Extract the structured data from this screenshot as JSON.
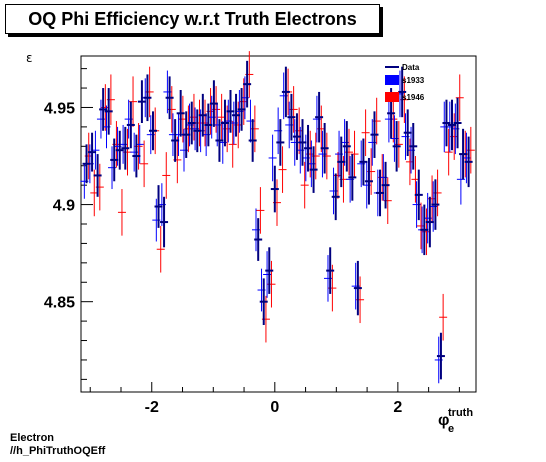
{
  "page": {
    "title": "OQ Phi Efficiency w.r.t Truth Electrons",
    "footer": [
      "Electron",
      "//h_PhiTruthOQEff"
    ]
  },
  "chart_data": {
    "type": "scatter",
    "title": "OQ Phi Efficiency w.r.t Truth Electrons",
    "ylabel": "ε",
    "xlabel_main": "φ",
    "xlabel_sub": "e",
    "xlabel_sup": "truth",
    "xlim": [
      -3.15,
      3.27
    ],
    "ylim": [
      4.8035,
      4.9765
    ],
    "xticks": [
      {
        "v": -2,
        "label": "-2"
      },
      {
        "v": 0,
        "label": "0"
      },
      {
        "v": 2,
        "label": "2"
      }
    ],
    "yticks": [
      {
        "v": 4.85,
        "label": "4.85"
      },
      {
        "v": 4.9,
        "label": "4.9"
      },
      {
        "v": 4.95,
        "label": "4.95"
      }
    ],
    "legend_position": "top-right",
    "series": [
      {
        "name": "Data",
        "color": "#00007f",
        "style": "errorbar",
        "points": [
          [
            -3.06,
            4.921,
            0.01
          ],
          [
            -2.97,
            4.927,
            0.01
          ],
          [
            -2.88,
            4.915,
            0.011
          ],
          [
            -2.79,
            4.949,
            0.011
          ],
          [
            -2.7,
            4.948,
            0.012
          ],
          [
            -2.61,
            4.923,
            0.011
          ],
          [
            -2.52,
            4.928,
            0.01
          ],
          [
            -2.43,
            4.929,
            0.011
          ],
          [
            -2.34,
            4.941,
            0.012
          ],
          [
            -2.25,
            4.925,
            0.011
          ],
          [
            -2.16,
            4.953,
            0.011
          ],
          [
            -2.07,
            4.955,
            0.012
          ],
          [
            -1.98,
            4.938,
            0.01
          ],
          [
            -1.89,
            4.899,
            0.011
          ],
          [
            -1.8,
            4.891,
            0.013
          ],
          [
            -1.71,
            4.955,
            0.011
          ],
          [
            -1.62,
            4.933,
            0.011
          ],
          [
            -1.53,
            4.947,
            0.012
          ],
          [
            -1.44,
            4.936,
            0.012
          ],
          [
            -1.35,
            4.942,
            0.011
          ],
          [
            -1.26,
            4.938,
            0.011
          ],
          [
            -1.17,
            4.946,
            0.011
          ],
          [
            -1.08,
            4.941,
            0.011
          ],
          [
            -0.99,
            4.952,
            0.012
          ],
          [
            -0.9,
            4.933,
            0.011
          ],
          [
            -0.81,
            4.942,
            0.012
          ],
          [
            -0.72,
            4.948,
            0.011
          ],
          [
            -0.63,
            4.946,
            0.011
          ],
          [
            -0.54,
            4.949,
            0.011
          ],
          [
            -0.45,
            4.962,
            0.012
          ],
          [
            -0.36,
            4.933,
            0.011
          ],
          [
            -0.27,
            4.882,
            0.011
          ],
          [
            -0.18,
            4.85,
            0.012
          ],
          [
            -0.09,
            4.866,
            0.012
          ],
          [
            0.0,
            4.908,
            0.012
          ],
          [
            0.09,
            4.932,
            0.012
          ],
          [
            0.18,
            4.958,
            0.013
          ],
          [
            0.27,
            4.945,
            0.012
          ],
          [
            0.36,
            4.935,
            0.012
          ],
          [
            0.45,
            4.932,
            0.012
          ],
          [
            0.54,
            4.929,
            0.012
          ],
          [
            0.63,
            4.918,
            0.012
          ],
          [
            0.72,
            4.945,
            0.013
          ],
          [
            0.81,
            4.929,
            0.013
          ],
          [
            0.9,
            4.866,
            0.012
          ],
          [
            0.99,
            4.904,
            0.012
          ],
          [
            1.08,
            4.922,
            0.013
          ],
          [
            1.17,
            4.93,
            0.013
          ],
          [
            1.26,
            4.914,
            0.012
          ],
          [
            1.35,
            4.857,
            0.014
          ],
          [
            1.44,
            4.922,
            0.012
          ],
          [
            1.53,
            4.912,
            0.012
          ],
          [
            1.62,
            4.936,
            0.012
          ],
          [
            1.71,
            4.906,
            0.012
          ],
          [
            1.8,
            4.91,
            0.012
          ],
          [
            1.89,
            4.947,
            0.013
          ],
          [
            1.98,
            4.93,
            0.013
          ],
          [
            2.07,
            4.958,
            0.013
          ],
          [
            2.16,
            4.937,
            0.012
          ],
          [
            2.25,
            4.93,
            0.012
          ],
          [
            2.34,
            4.905,
            0.013
          ],
          [
            2.43,
            4.887,
            0.013
          ],
          [
            2.52,
            4.891,
            0.013
          ],
          [
            2.61,
            4.9,
            0.013
          ],
          [
            2.7,
            4.822,
            0.012
          ],
          [
            2.79,
            4.942,
            0.012
          ],
          [
            2.88,
            4.941,
            0.013
          ],
          [
            2.97,
            4.942,
            0.013
          ],
          [
            3.06,
            4.926,
            0.013
          ],
          [
            3.15,
            4.922,
            0.013
          ]
        ]
      },
      {
        "name": "s1933",
        "color": "#0000ff",
        "style": "errorbar",
        "points": [
          [
            -3.06,
            4.912,
            0.009
          ],
          [
            -2.97,
            4.921,
            0.01
          ],
          [
            -2.88,
            4.928,
            0.01
          ],
          [
            -2.79,
            4.944,
            0.01
          ],
          [
            -2.7,
            4.94,
            0.011
          ],
          [
            -2.61,
            4.919,
            0.011
          ],
          [
            -2.52,
            4.93,
            0.01
          ],
          [
            -2.43,
            4.931,
            0.01
          ],
          [
            -2.34,
            4.944,
            0.01
          ],
          [
            -2.25,
            4.927,
            0.01
          ],
          [
            -2.16,
            4.931,
            0.01
          ],
          [
            -2.07,
            4.955,
            0.01
          ],
          [
            -1.98,
            4.936,
            0.01
          ],
          [
            -1.89,
            4.892,
            0.011
          ],
          [
            -1.8,
            4.9,
            0.011
          ],
          [
            -1.71,
            4.958,
            0.011
          ],
          [
            -1.62,
            4.936,
            0.011
          ],
          [
            -1.53,
            4.936,
            0.011
          ],
          [
            -1.44,
            4.928,
            0.011
          ],
          [
            -1.35,
            4.941,
            0.011
          ],
          [
            -1.26,
            4.939,
            0.011
          ],
          [
            -1.17,
            4.938,
            0.011
          ],
          [
            -1.08,
            4.936,
            0.011
          ],
          [
            -0.99,
            4.945,
            0.011
          ],
          [
            -0.9,
            4.941,
            0.011
          ],
          [
            -0.81,
            4.932,
            0.011
          ],
          [
            -0.72,
            4.943,
            0.011
          ],
          [
            -0.63,
            4.942,
            0.011
          ],
          [
            -0.54,
            4.948,
            0.011
          ],
          [
            -0.45,
            4.955,
            0.011
          ],
          [
            -0.36,
            4.943,
            0.011
          ],
          [
            -0.27,
            4.887,
            0.011
          ],
          [
            -0.18,
            4.856,
            0.011
          ],
          [
            -0.09,
            4.864,
            0.012
          ],
          [
            0.0,
            4.924,
            0.012
          ],
          [
            0.09,
            4.938,
            0.012
          ],
          [
            0.18,
            4.956,
            0.012
          ],
          [
            0.27,
            4.941,
            0.012
          ],
          [
            0.36,
            4.932,
            0.012
          ],
          [
            0.45,
            4.928,
            0.012
          ],
          [
            0.54,
            4.924,
            0.012
          ],
          [
            0.63,
            4.921,
            0.012
          ],
          [
            0.72,
            4.944,
            0.012
          ],
          [
            0.81,
            4.926,
            0.012
          ],
          [
            0.9,
            4.862,
            0.012
          ],
          [
            0.99,
            4.907,
            0.012
          ],
          [
            1.08,
            4.926,
            0.012
          ],
          [
            1.17,
            4.932,
            0.012
          ],
          [
            1.26,
            4.913,
            0.012
          ],
          [
            1.35,
            4.858,
            0.012
          ],
          [
            1.44,
            4.921,
            0.012
          ],
          [
            1.53,
            4.91,
            0.012
          ],
          [
            1.62,
            4.932,
            0.012
          ],
          [
            1.71,
            4.906,
            0.012
          ],
          [
            1.8,
            4.914,
            0.012
          ],
          [
            1.89,
            4.944,
            0.012
          ],
          [
            1.98,
            4.934,
            0.012
          ],
          [
            2.07,
            4.957,
            0.012
          ],
          [
            2.16,
            4.935,
            0.012
          ],
          [
            2.25,
            4.928,
            0.012
          ],
          [
            2.34,
            4.9,
            0.012
          ],
          [
            2.43,
            4.887,
            0.012
          ],
          [
            2.52,
            4.893,
            0.013
          ],
          [
            2.61,
            4.899,
            0.013
          ],
          [
            2.7,
            4.82,
            0.012
          ],
          [
            2.79,
            4.94,
            0.013
          ],
          [
            2.88,
            4.94,
            0.013
          ],
          [
            2.97,
            4.939,
            0.013
          ],
          [
            3.06,
            4.913,
            0.013
          ],
          [
            3.15,
            4.924,
            0.013
          ]
        ]
      },
      {
        "name": "s1946",
        "color": "#ff0000",
        "style": "errorbar",
        "points": [
          [
            -3.06,
            4.925,
            0.012
          ],
          [
            -2.97,
            4.906,
            0.012
          ],
          [
            -2.88,
            4.909,
            0.012
          ],
          [
            -2.79,
            4.95,
            0.012
          ],
          [
            -2.7,
            4.954,
            0.013
          ],
          [
            -2.61,
            4.931,
            0.012
          ],
          [
            -2.52,
            4.896,
            0.012
          ],
          [
            -2.43,
            4.927,
            0.012
          ],
          [
            -2.34,
            4.953,
            0.013
          ],
          [
            -2.25,
            4.93,
            0.012
          ],
          [
            -2.16,
            4.921,
            0.012
          ],
          [
            -2.07,
            4.958,
            0.013
          ],
          [
            -1.98,
            4.938,
            0.012
          ],
          [
            -1.89,
            4.877,
            0.012
          ],
          [
            -1.8,
            4.915,
            0.012
          ],
          [
            -1.71,
            4.949,
            0.012
          ],
          [
            -1.62,
            4.923,
            0.012
          ],
          [
            -1.53,
            4.944,
            0.012
          ],
          [
            -1.44,
            4.939,
            0.012
          ],
          [
            -1.35,
            4.945,
            0.012
          ],
          [
            -1.26,
            4.942,
            0.012
          ],
          [
            -1.17,
            4.942,
            0.012
          ],
          [
            -1.08,
            4.948,
            0.012
          ],
          [
            -0.99,
            4.949,
            0.012
          ],
          [
            -0.9,
            4.945,
            0.012
          ],
          [
            -0.81,
            4.939,
            0.012
          ],
          [
            -0.72,
            4.931,
            0.012
          ],
          [
            -0.63,
            4.941,
            0.012
          ],
          [
            -0.54,
            4.953,
            0.012
          ],
          [
            -0.45,
            4.967,
            0.012
          ],
          [
            -0.36,
            4.939,
            0.012
          ],
          [
            -0.27,
            4.897,
            0.012
          ],
          [
            -0.18,
            4.841,
            0.012
          ],
          [
            -0.09,
            4.859,
            0.012
          ],
          [
            0.0,
            4.901,
            0.012
          ],
          [
            0.09,
            4.918,
            0.012
          ],
          [
            0.18,
            4.958,
            0.012
          ],
          [
            0.27,
            4.949,
            0.012
          ],
          [
            0.36,
            4.938,
            0.012
          ],
          [
            0.45,
            4.91,
            0.012
          ],
          [
            0.54,
            4.926,
            0.012
          ],
          [
            0.63,
            4.925,
            0.012
          ],
          [
            0.72,
            4.939,
            0.012
          ],
          [
            0.81,
            4.925,
            0.012
          ],
          [
            0.9,
            4.857,
            0.012
          ],
          [
            0.99,
            4.915,
            0.012
          ],
          [
            1.08,
            4.913,
            0.012
          ],
          [
            1.17,
            4.927,
            0.012
          ],
          [
            1.26,
            4.926,
            0.012
          ],
          [
            1.35,
            4.851,
            0.012
          ],
          [
            1.44,
            4.937,
            0.012
          ],
          [
            1.53,
            4.917,
            0.012
          ],
          [
            1.62,
            4.943,
            0.012
          ],
          [
            1.71,
            4.914,
            0.012
          ],
          [
            1.8,
            4.902,
            0.012
          ],
          [
            1.89,
            4.944,
            0.012
          ],
          [
            1.98,
            4.931,
            0.012
          ],
          [
            2.07,
            4.954,
            0.012
          ],
          [
            2.16,
            4.922,
            0.012
          ],
          [
            2.25,
            4.913,
            0.012
          ],
          [
            2.34,
            4.889,
            0.012
          ],
          [
            2.43,
            4.886,
            0.012
          ],
          [
            2.52,
            4.903,
            0.012
          ],
          [
            2.61,
            4.906,
            0.012
          ],
          [
            2.7,
            4.842,
            0.012
          ],
          [
            2.79,
            4.927,
            0.012
          ],
          [
            2.88,
            4.935,
            0.012
          ],
          [
            2.97,
            4.955,
            0.012
          ],
          [
            3.06,
            4.926,
            0.012
          ],
          [
            3.15,
            4.928,
            0.012
          ]
        ]
      }
    ]
  }
}
